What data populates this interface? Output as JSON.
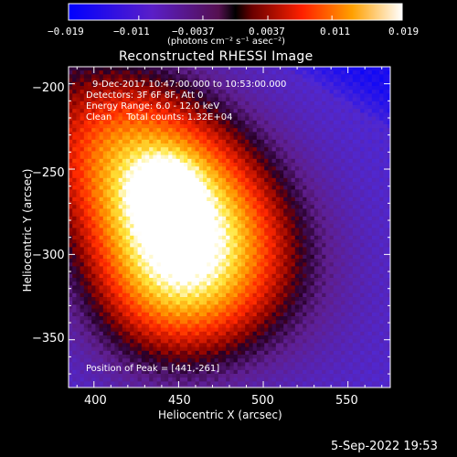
{
  "colorbar": {
    "ticks": [
      "−0.019",
      "−0.011",
      "−0.0037",
      "0.0037",
      "0.011",
      "0.019"
    ],
    "unit_label": "(photons cm⁻² s⁻¹ asec⁻²)"
  },
  "chart_data": {
    "type": "heatmap",
    "title": "Reconstructed RHESSI Image",
    "xlabel": "Heliocentric X (arcsec)",
    "ylabel": "Heliocentric Y (arcsec)",
    "xlim": [
      385,
      575
    ],
    "ylim": [
      -378,
      -190
    ],
    "x_ticks": [
      400,
      450,
      500,
      550
    ],
    "y_ticks": [
      -200,
      -250,
      -300,
      -350
    ],
    "x_tick_labels": [
      "400",
      "450",
      "500",
      "550"
    ],
    "y_tick_labels": [
      "−200",
      "−250",
      "−300",
      "−350"
    ],
    "value_range": [
      -0.019,
      0.019
    ],
    "colormap": "blue-purple-red-orange-yellow-white",
    "peak": [
      441,
      -261
    ],
    "annotations": [
      "9-Dec-2017 10:47:00.000 to 10:53:00.000",
      "Detectors: 3F 6F 8F, Att 0",
      "Energy Range: 6.0 - 12.0 keV",
      "Clean     Total counts: 1.32E+04",
      "Position of Peak = [441,-261]"
    ]
  },
  "footer": {
    "timestamp": "5-Sep-2022 19:53"
  }
}
